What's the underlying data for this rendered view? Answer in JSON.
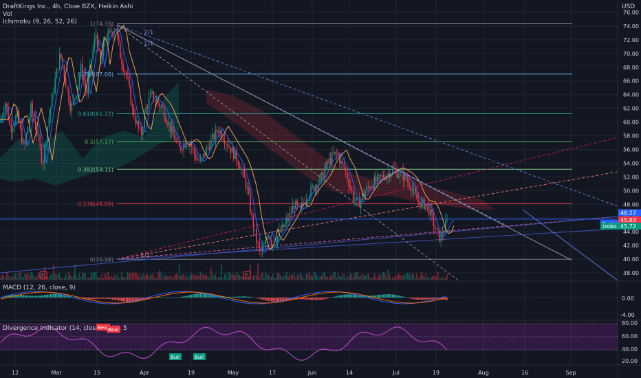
{
  "header": {
    "title": "DraftKings Inc., 4h, Cboe BZX, Heikin Ashi",
    "vol_label": "Vol",
    "ichimoku_label": "Ichimoku (9, 26, 52, 26)",
    "currency": "USD"
  },
  "price_axis": {
    "ticks": [
      "76.00",
      "74.00",
      "72.00",
      "70.00",
      "68.00",
      "66.00",
      "64.00",
      "62.00",
      "60.00",
      "58.00",
      "56.00",
      "54.00",
      "52.00",
      "50.00",
      "48.00",
      "46.00",
      "44.00",
      "42.00",
      "40.00",
      "38.00"
    ],
    "tags": [
      {
        "label": "",
        "value": "46.27",
        "color": "#2962ff"
      },
      {
        "label": "Post",
        "value": "45.83",
        "color": "#2962ff"
      },
      {
        "label": "",
        "value": "45.83",
        "color": "#f23645"
      },
      {
        "label": "DKNG",
        "value": "45.72",
        "color": "#089981"
      }
    ]
  },
  "fib_levels": [
    {
      "label": "1(74.35)",
      "price": 74.35,
      "color": "#787b86"
    },
    {
      "label": "0.786(67.00)",
      "price": 67.0,
      "color": "#64b5f6"
    },
    {
      "label": "0.618(61.22)",
      "price": 61.22,
      "color": "#26a69a"
    },
    {
      "label": "0.5(57.17)",
      "price": 57.17,
      "color": "#4caf50"
    },
    {
      "label": "0.382(53.11)",
      "price": 53.11,
      "color": "#81c784"
    },
    {
      "label": "0.236(48.09)",
      "price": 48.09,
      "color": "#f23645"
    },
    {
      "label": "0(39.98)",
      "price": 39.98,
      "color": "#787b86"
    }
  ],
  "fan_labels": {
    "a": "2/1",
    "b": "1/1",
    "c": "1/1"
  },
  "earnings_markers": [
    "E",
    "E"
  ],
  "macd": {
    "label": "MACD (12, 26, close, 9)",
    "ticks": [
      "0.00",
      "-4.00"
    ]
  },
  "divergence": {
    "label": "Divergence Indicator (14, close, 5, 60, 5",
    "ticks": [
      "80.00",
      "60.00",
      "40.00",
      "20.00"
    ],
    "tags": [
      "Bear",
      "Bear",
      "Bull",
      "Bull"
    ]
  },
  "time_axis": [
    "12",
    "Mar",
    "15",
    "Apr",
    "19",
    "May",
    "17",
    "Jun",
    "14",
    "Jul",
    "19",
    "Aug",
    "16",
    "Sep"
  ],
  "chart_data": {
    "type": "candlestick",
    "title": "DraftKings Inc., 4h, Cboe BZX, Heikin Ashi",
    "ylim": [
      37,
      77
    ],
    "xlabels": [
      "12",
      "Mar",
      "15",
      "Apr",
      "19",
      "May",
      "17",
      "Jun",
      "14",
      "Jul",
      "19",
      "Aug",
      "16",
      "Sep"
    ],
    "price_path": [
      [
        0,
        60
      ],
      [
        8,
        63
      ],
      [
        15,
        59
      ],
      [
        25,
        61
      ],
      [
        35,
        56
      ],
      [
        45,
        62
      ],
      [
        55,
        58
      ],
      [
        62,
        54
      ],
      [
        70,
        60
      ],
      [
        80,
        66
      ],
      [
        88,
        70
      ],
      [
        95,
        66
      ],
      [
        103,
        62
      ],
      [
        110,
        64
      ],
      [
        118,
        68
      ],
      [
        126,
        64
      ],
      [
        134,
        70
      ],
      [
        140,
        73
      ],
      [
        146,
        68
      ],
      [
        152,
        72
      ],
      [
        160,
        73
      ],
      [
        168,
        74
      ],
      [
        174,
        70
      ],
      [
        180,
        68
      ],
      [
        186,
        66
      ],
      [
        192,
        62
      ],
      [
        198,
        60
      ],
      [
        205,
        58
      ],
      [
        212,
        62
      ],
      [
        220,
        64
      ],
      [
        228,
        63
      ],
      [
        236,
        62
      ],
      [
        244,
        60
      ],
      [
        252,
        58
      ],
      [
        260,
        56
      ],
      [
        268,
        57
      ],
      [
        276,
        57
      ],
      [
        284,
        55
      ],
      [
        292,
        54
      ],
      [
        300,
        56
      ],
      [
        306,
        57
      ],
      [
        312,
        58
      ],
      [
        318,
        59
      ],
      [
        324,
        58
      ],
      [
        330,
        57
      ],
      [
        336,
        56
      ],
      [
        342,
        55
      ],
      [
        348,
        54
      ],
      [
        354,
        52
      ],
      [
        360,
        50
      ],
      [
        366,
        46
      ],
      [
        372,
        43
      ],
      [
        378,
        41
      ],
      [
        384,
        41.5
      ],
      [
        390,
        44
      ],
      [
        396,
        42
      ],
      [
        402,
        43
      ],
      [
        408,
        44
      ],
      [
        414,
        45
      ],
      [
        420,
        46
      ],
      [
        428,
        48
      ],
      [
        436,
        47
      ],
      [
        444,
        49
      ],
      [
        452,
        50
      ],
      [
        460,
        51
      ],
      [
        468,
        52
      ],
      [
        476,
        54
      ],
      [
        484,
        55
      ],
      [
        490,
        55.5
      ],
      [
        496,
        54
      ],
      [
        502,
        53
      ],
      [
        508,
        51
      ],
      [
        514,
        49
      ],
      [
        520,
        48
      ],
      [
        526,
        49
      ],
      [
        532,
        50
      ],
      [
        540,
        51
      ],
      [
        548,
        51.5
      ],
      [
        556,
        52
      ],
      [
        564,
        52.5
      ],
      [
        572,
        53
      ],
      [
        580,
        52.5
      ],
      [
        588,
        52
      ],
      [
        596,
        51
      ],
      [
        604,
        49
      ],
      [
        612,
        48
      ],
      [
        620,
        48
      ],
      [
        628,
        46
      ],
      [
        634,
        44
      ],
      [
        640,
        43
      ],
      [
        646,
        44.5
      ],
      [
        652,
        45.7
      ]
    ],
    "fib_levels": [
      74.35,
      67.0,
      61.22,
      57.17,
      53.11,
      48.09,
      39.98
    ],
    "last_price": 45.72,
    "post_price": 45.83,
    "macd_range": [
      -6,
      2
    ],
    "divergence_range": [
      15,
      85
    ]
  }
}
